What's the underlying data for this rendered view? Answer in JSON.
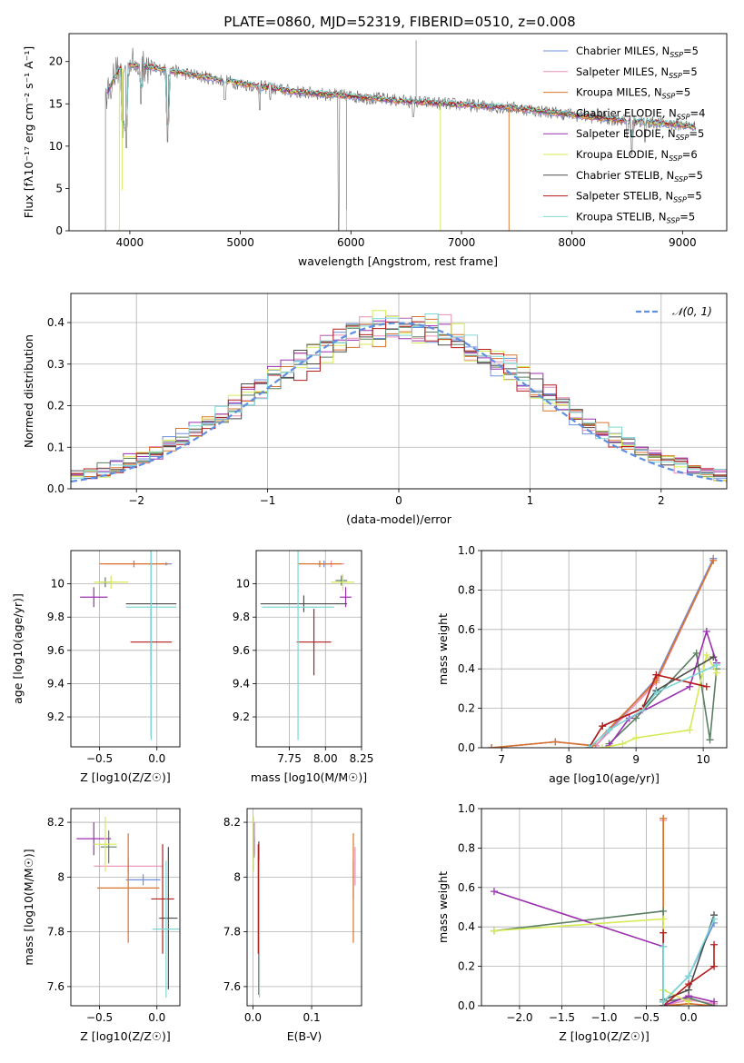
{
  "figure": {
    "title": "PLATE=0860, MJD=52319, FIBERID=0510, z=0.008"
  },
  "colors": {
    "Chabrier MILES": "#6f8fdc",
    "Salpeter MILES": "#e98fb6",
    "Kroupa MILES": "#d9742c",
    "Chabrier ELODIE": "#5b7f63",
    "Salpeter ELODIE": "#9b2fb0",
    "Kroupa ELODIE": "#d7ea55",
    "Chabrier STELIB": "#4d4d4d",
    "Salpeter STELIB": "#b51c1c",
    "Kroupa STELIB": "#7fd6d6",
    "normal_curve": "#5f8fe0",
    "grid": "#b0b0b0"
  },
  "chart_data": [
    {
      "id": "spectrum",
      "type": "line",
      "xlabel": "wavelength [Angstrom, rest frame]",
      "ylabel": "Flux [fλ10⁻¹⁷ erg cm⁻² s⁻¹ A⁻¹]",
      "xlim": [
        3450,
        9400
      ],
      "ylim": [
        0,
        23.3
      ],
      "xticks": [
        4000,
        5000,
        6000,
        7000,
        8000,
        9000
      ],
      "yticks": [
        0,
        5,
        10,
        15,
        20
      ],
      "grid": false,
      "legend_position": "top-right",
      "legend": [
        {
          "label": "Chabrier MILES, N",
          "sub": "SSP",
          "suffix": "=5"
        },
        {
          "label": "Salpeter MILES, N",
          "sub": "SSP",
          "suffix": "=5"
        },
        {
          "label": "Kroupa MILES, N",
          "sub": "SSP",
          "suffix": "=5"
        },
        {
          "label": "Chabrier ELODIE, N",
          "sub": "SSP",
          "suffix": "=4"
        },
        {
          "label": "Salpeter ELODIE, N",
          "sub": "SSP",
          "suffix": "=5"
        },
        {
          "label": "Kroupa ELODIE, N",
          "sub": "SSP",
          "suffix": "=6"
        },
        {
          "label": "Chabrier STELIB, N",
          "sub": "SSP",
          "suffix": "=5"
        },
        {
          "label": "Salpeter STELIB, N",
          "sub": "SSP",
          "suffix": "=5"
        },
        {
          "label": "Kroupa STELIB, N",
          "sub": "SSP",
          "suffix": "=5"
        }
      ],
      "continuum_x": [
        3800,
        3900,
        4000,
        4200,
        4500,
        5000,
        5500,
        6000,
        6500,
        7000,
        7500,
        8000,
        8500,
        9000,
        9100
      ],
      "continuum_y": [
        16.5,
        19.0,
        19.6,
        19.3,
        18.6,
        17.4,
        16.4,
        15.9,
        15.3,
        14.9,
        14.5,
        13.7,
        13.0,
        12.5,
        12.3
      ],
      "absorption_x": [
        3934,
        3969,
        4102,
        4340,
        4861,
        5175,
        5270,
        5890,
        6563,
        8498,
        8542,
        8662
      ],
      "absorption_y": [
        11.0,
        9.8,
        15.0,
        10.5,
        15.5,
        14.3,
        15.5,
        0.0,
        13.5,
        11.0,
        9.0,
        10.5
      ],
      "spikes_x": [
        3780,
        3905,
        3930,
        5960,
        5960,
        6810,
        7430,
        6590
      ],
      "spikes_y": [
        0.0,
        0.0,
        4.8,
        0.0,
        2.5,
        0.0,
        0.0,
        22.5
      ]
    },
    {
      "id": "residual_hist",
      "type": "line",
      "xlabel": "(data-model)/error",
      "ylabel": "Normed distribution",
      "xlim": [
        -2.5,
        2.5
      ],
      "ylim": [
        0,
        0.47
      ],
      "xticks": [
        -2,
        -1,
        0,
        1,
        2
      ],
      "yticks": [
        0.0,
        0.1,
        0.2,
        0.3,
        0.4
      ],
      "grid": true,
      "legend_position": "top-right",
      "legend_label": "𝒩(0, 1)",
      "bin_width": 0.1,
      "bin_start": -2.5
    },
    {
      "id": "age_vs_Z",
      "type": "scatter",
      "xlabel": "Z [log10(Z/Z☉)]",
      "ylabel": "age  [log10(age/yr)]",
      "xlim": [
        -0.75,
        0.2
      ],
      "ylim": [
        9.02,
        10.2
      ],
      "xticks": [
        -0.5,
        0.0
      ],
      "xticklabels": [
        "−0.5",
        "0.0"
      ],
      "yticks": [
        9.2,
        9.4,
        9.6,
        9.8,
        10.0
      ],
      "grid": true,
      "points": [
        {
          "model": "Chabrier MILES",
          "x": 0.08,
          "xerr": 0.05,
          "y": 10.12,
          "yerr": 0.01
        },
        {
          "model": "Salpeter MILES",
          "x": -0.2,
          "xerr": 0.25,
          "y": 10.12,
          "yerr": 0.02
        },
        {
          "model": "Kroupa MILES",
          "x": -0.2,
          "xerr": 0.3,
          "y": 10.12,
          "yerr": 0.02
        },
        {
          "model": "Chabrier ELODIE",
          "x": -0.45,
          "xerr": 0.05,
          "y": 10.01,
          "yerr": 0.03
        },
        {
          "model": "Salpeter ELODIE",
          "x": -0.55,
          "xerr": 0.12,
          "y": 9.92,
          "yerr": 0.06
        },
        {
          "model": "Kroupa ELODIE",
          "x": -0.4,
          "xerr": 0.15,
          "y": 10.01,
          "yerr": 0.04
        },
        {
          "model": "Chabrier STELIB",
          "x": -0.05,
          "xerr": 0.22,
          "y": 9.88,
          "yerr": 0.8
        },
        {
          "model": "Salpeter STELIB",
          "x": -0.05,
          "xerr": 0.18,
          "y": 9.65,
          "yerr": 0.2
        },
        {
          "model": "Kroupa STELIB",
          "x": -0.05,
          "xerr": 0.22,
          "y": 9.86,
          "yerr": 0.8
        }
      ]
    },
    {
      "id": "age_vs_mass",
      "type": "scatter",
      "xlabel": "mass [log10(M/M☉)]",
      "ylabel": "",
      "xlim": [
        7.52,
        8.25
      ],
      "ylim": [
        9.02,
        10.2
      ],
      "xticks": [
        7.75,
        8.0,
        8.25
      ],
      "xticklabels": [
        "7.75",
        "8.00",
        "8.25"
      ],
      "yticks": [
        9.2,
        9.4,
        9.6,
        9.8,
        10.0
      ],
      "grid": true,
      "points": [
        {
          "model": "Chabrier MILES",
          "x": 7.99,
          "xerr": 0.05,
          "y": 10.12,
          "yerr": 0.02
        },
        {
          "model": "Salpeter MILES",
          "x": 8.04,
          "xerr": 0.09,
          "y": 10.12,
          "yerr": 0.02
        },
        {
          "model": "Kroupa MILES",
          "x": 7.96,
          "xerr": 0.15,
          "y": 10.12,
          "yerr": 0.02
        },
        {
          "model": "Chabrier ELODIE",
          "x": 8.11,
          "xerr": 0.04,
          "y": 10.02,
          "yerr": 0.03
        },
        {
          "model": "Salpeter ELODIE",
          "x": 8.14,
          "xerr": 0.04,
          "y": 9.92,
          "yerr": 0.06
        },
        {
          "model": "Kroupa ELODIE",
          "x": 8.12,
          "xerr": 0.08,
          "y": 10.01,
          "yerr": 0.05
        },
        {
          "model": "Chabrier STELIB",
          "x": 7.85,
          "xerr": 0.3,
          "y": 9.88,
          "yerr": 0.05
        },
        {
          "model": "Salpeter STELIB",
          "x": 7.92,
          "xerr": 0.12,
          "y": 9.65,
          "yerr": 0.2
        },
        {
          "model": "Kroupa STELIB",
          "x": 7.81,
          "xerr": 0.25,
          "y": 9.86,
          "yerr": 0.8
        }
      ]
    },
    {
      "id": "weight_vs_age",
      "type": "line",
      "xlabel": "age  [log10(age/yr)]",
      "ylabel": "mass weight",
      "xlim": [
        6.7,
        10.35
      ],
      "ylim": [
        0,
        1.0
      ],
      "xticks": [
        7,
        8,
        9,
        10
      ],
      "yticks": [
        0.0,
        0.2,
        0.4,
        0.6,
        0.8,
        1.0
      ],
      "grid": true,
      "series": [
        {
          "model": "Chabrier MILES",
          "x": [
            6.85,
            7.8,
            8.4,
            9.3,
            10.15
          ],
          "y": [
            0.0,
            0.03,
            0.01,
            0.35,
            0.96
          ]
        },
        {
          "model": "Salpeter MILES",
          "x": [
            6.85,
            7.8,
            8.4,
            9.3,
            10.15
          ],
          "y": [
            0.0,
            0.03,
            0.01,
            0.33,
            0.95
          ]
        },
        {
          "model": "Kroupa MILES",
          "x": [
            6.85,
            7.8,
            8.35,
            9.3,
            10.15
          ],
          "y": [
            0.0,
            0.03,
            0.01,
            0.34,
            0.95
          ]
        },
        {
          "model": "Chabrier ELODIE",
          "x": [
            8.6,
            9.0,
            9.9,
            10.1,
            10.2
          ],
          "y": [
            0.02,
            0.15,
            0.48,
            0.04,
            0.4
          ]
        },
        {
          "model": "Salpeter ELODIE",
          "x": [
            8.6,
            8.9,
            9.8,
            10.05,
            10.2
          ],
          "y": [
            0.01,
            0.15,
            0.31,
            0.59,
            0.43
          ]
        },
        {
          "model": "Kroupa ELODIE",
          "x": [
            8.5,
            8.8,
            9.0,
            9.8,
            10.05,
            10.2
          ],
          "y": [
            0.0,
            0.02,
            0.05,
            0.09,
            0.47,
            0.38
          ]
        },
        {
          "model": "Chabrier STELIB",
          "x": [
            8.3,
            8.5,
            9.1,
            9.3,
            10.15
          ],
          "y": [
            0.0,
            0.11,
            0.2,
            0.29,
            0.46
          ]
        },
        {
          "model": "Salpeter STELIB",
          "x": [
            8.3,
            8.5,
            9.1,
            9.3,
            10.05
          ],
          "y": [
            0.0,
            0.11,
            0.2,
            0.37,
            0.31
          ]
        },
        {
          "model": "Kroupa STELIB",
          "x": [
            8.3,
            8.6,
            9.1,
            9.3,
            10.2
          ],
          "y": [
            0.0,
            0.09,
            0.19,
            0.28,
            0.42
          ]
        }
      ]
    },
    {
      "id": "mass_vs_Z",
      "type": "scatter",
      "xlabel": "Z [log10(Z/Z☉)]",
      "ylabel": "mass [log10(M/M☉)]",
      "xlim": [
        -0.75,
        0.2
      ],
      "ylim": [
        7.53,
        8.25
      ],
      "xticks": [
        -0.5,
        0.0
      ],
      "xticklabels": [
        "−0.5",
        "0.0"
      ],
      "yticks": [
        7.6,
        7.8,
        8.0,
        8.2
      ],
      "grid": true,
      "points": [
        {
          "model": "Chabrier MILES",
          "x": -0.12,
          "xerr": 0.15,
          "y": 7.99,
          "yerr": 0.02
        },
        {
          "model": "Salpeter MILES",
          "x": -0.25,
          "xerr": 0.3,
          "y": 8.04,
          "yerr": 0.03
        },
        {
          "model": "Kroupa MILES",
          "x": -0.25,
          "xerr": 0.27,
          "y": 7.96,
          "yerr": 0.2
        },
        {
          "model": "Chabrier ELODIE",
          "x": -0.42,
          "xerr": 0.07,
          "y": 8.11,
          "yerr": 0.06
        },
        {
          "model": "Salpeter ELODIE",
          "x": -0.55,
          "xerr": 0.15,
          "y": 8.14,
          "yerr": 0.06
        },
        {
          "model": "Kroupa ELODIE",
          "x": -0.45,
          "xerr": 0.1,
          "y": 8.12,
          "yerr": 0.1
        },
        {
          "model": "Chabrier STELIB",
          "x": 0.1,
          "xerr": 0.08,
          "y": 7.85,
          "yerr": 0.26
        },
        {
          "model": "Salpeter STELIB",
          "x": 0.05,
          "xerr": 0.1,
          "y": 7.92,
          "yerr": 0.2
        },
        {
          "model": "Kroupa STELIB",
          "x": 0.08,
          "xerr": 0.12,
          "y": 7.81,
          "yerr": 0.25
        }
      ]
    },
    {
      "id": "mass_vs_EBV",
      "type": "scatter",
      "xlabel": "E(B-V)",
      "ylabel": "",
      "xlim": [
        -0.01,
        0.185
      ],
      "ylim": [
        7.53,
        8.25
      ],
      "xticks": [
        0.0,
        0.1
      ],
      "xticklabels": [
        "0.0",
        "0.1"
      ],
      "yticks": [
        7.6,
        7.8,
        8.0,
        8.2
      ],
      "grid": true,
      "points": [
        {
          "model": "Chabrier MILES",
          "x": 0.171,
          "y": 7.99,
          "yerr": 0.07
        },
        {
          "model": "Salpeter MILES",
          "x": 0.174,
          "y": 8.04,
          "yerr": 0.07
        },
        {
          "model": "Kroupa MILES",
          "x": 0.171,
          "y": 7.96,
          "yerr": 0.2
        },
        {
          "model": "Chabrier ELODIE",
          "x": 0.002,
          "y": 8.11,
          "yerr": 0.04
        },
        {
          "model": "Salpeter ELODIE",
          "x": 0.002,
          "y": 8.14,
          "yerr": 0.06
        },
        {
          "model": "Kroupa ELODIE",
          "x": 0.001,
          "y": 8.12,
          "yerr": 0.1
        },
        {
          "model": "Chabrier STELIB",
          "x": 0.01,
          "y": 7.85,
          "yerr": 0.28
        },
        {
          "model": "Salpeter STELIB",
          "x": 0.009,
          "y": 7.92,
          "yerr": 0.2
        },
        {
          "model": "Kroupa STELIB",
          "x": 0.011,
          "y": 7.81,
          "yerr": 0.25
        }
      ]
    },
    {
      "id": "weight_vs_Z",
      "type": "line",
      "xlabel": "Z [log10(Z/Z☉)]",
      "ylabel": "mass weight",
      "xlim": [
        -2.45,
        0.45
      ],
      "ylim": [
        0,
        1.0
      ],
      "xticks": [
        -2.0,
        -1.5,
        -1.0,
        -0.5,
        0.0
      ],
      "xticklabels": [
        "−2.0",
        "−1.5",
        "−1.0",
        "−0.5",
        "0.0"
      ],
      "yticks": [
        0.0,
        0.2,
        0.4,
        0.6,
        0.8,
        1.0
      ],
      "grid": true,
      "series": [
        {
          "model": "Chabrier MILES",
          "x": [
            -0.3,
            -0.3,
            0.0,
            0.3
          ],
          "y": [
            0.95,
            0.02,
            0.15,
            0.42
          ]
        },
        {
          "model": "Salpeter MILES",
          "x": [
            -0.3,
            -0.3,
            0.0,
            0.3
          ],
          "y": [
            0.94,
            0.0,
            0.03,
            0.01
          ]
        },
        {
          "model": "Kroupa MILES",
          "x": [
            -0.3,
            -0.3,
            0.0,
            0.3
          ],
          "y": [
            0.95,
            0.0,
            0.01,
            0.0
          ]
        },
        {
          "model": "Chabrier ELODIE",
          "x": [
            -2.3,
            -0.3,
            -0.3,
            0.0,
            0.3
          ],
          "y": [
            0.38,
            0.48,
            0.02,
            0.04,
            0.0
          ]
        },
        {
          "model": "Salpeter ELODIE",
          "x": [
            -2.3,
            -0.3,
            -0.3,
            0.0,
            0.3
          ],
          "y": [
            0.58,
            0.3,
            0.0,
            0.05,
            0.02
          ]
        },
        {
          "model": "Kroupa ELODIE",
          "x": [
            -2.3,
            -0.3,
            -0.3,
            0.0
          ],
          "y": [
            0.38,
            0.44,
            0.08,
            0.02
          ]
        },
        {
          "model": "Chabrier STELIB",
          "x": [
            -0.3,
            -0.3,
            0.0,
            0.3
          ],
          "y": [
            0.0,
            0.03,
            0.08,
            0.46
          ]
        },
        {
          "model": "Salpeter STELIB",
          "x": [
            -0.3,
            -0.3,
            0.0,
            0.3,
            0.3
          ],
          "y": [
            0.37,
            0.0,
            0.11,
            0.2,
            0.31
          ]
        },
        {
          "model": "Kroupa STELIB",
          "x": [
            -0.3,
            -0.3,
            0.0,
            0.3
          ],
          "y": [
            0.3,
            0.02,
            0.15,
            0.44
          ]
        }
      ]
    }
  ]
}
